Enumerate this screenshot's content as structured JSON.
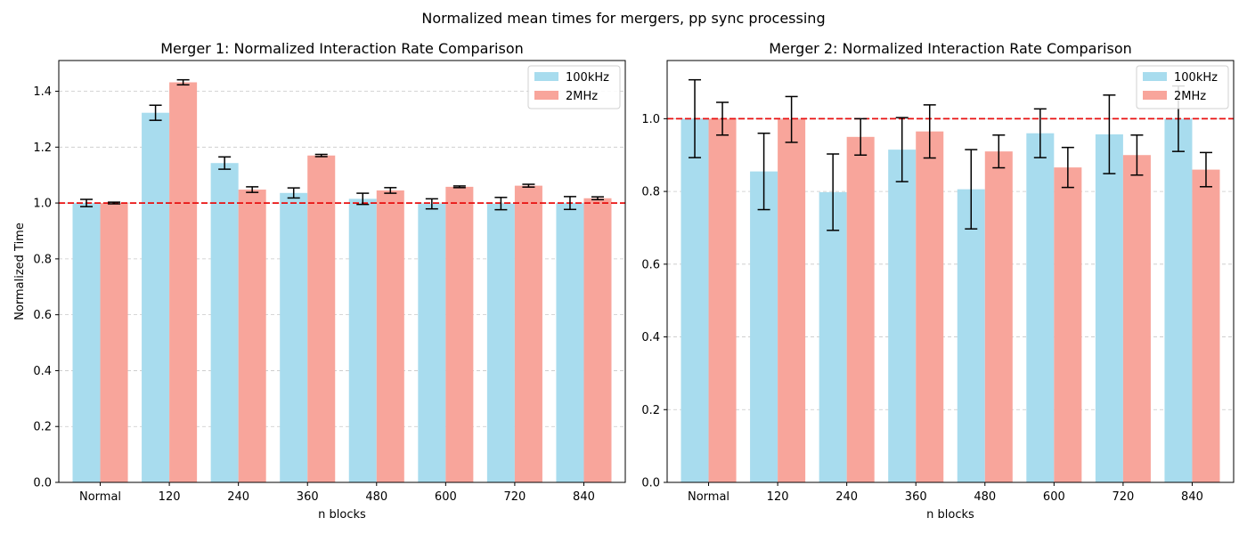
{
  "figure": {
    "suptitle": "Normalized mean times for mergers, pp sync processing"
  },
  "colors": {
    "100kHz": "#a8dcee",
    "2MHz": "#f8a59b",
    "reference": "#e81010",
    "grid": "#c8c8c8",
    "error": "#000000"
  },
  "chart_data": [
    {
      "type": "bar",
      "title": "Merger 1: Normalized Interaction Rate Comparison",
      "xlabel": "n blocks",
      "ylabel": "Normalized Time",
      "categories": [
        "Normal",
        "120",
        "240",
        "360",
        "480",
        "600",
        "720",
        "840"
      ],
      "series": [
        {
          "name": "100kHz",
          "values": [
            1.0,
            1.323,
            1.143,
            1.036,
            1.015,
            0.997,
            0.998,
            1.0
          ],
          "errors": [
            0.013,
            0.027,
            0.022,
            0.018,
            0.02,
            0.018,
            0.022,
            0.023
          ]
        },
        {
          "name": "2MHz",
          "values": [
            1.0,
            1.432,
            1.048,
            1.17,
            1.045,
            1.058,
            1.062,
            1.017
          ],
          "errors": [
            0.003,
            0.009,
            0.01,
            0.004,
            0.01,
            0.003,
            0.005,
            0.005
          ]
        }
      ],
      "ylim": [
        0,
        1.51
      ],
      "yticks": [
        0.0,
        0.2,
        0.4,
        0.6,
        0.8,
        1.0,
        1.2,
        1.4
      ],
      "reference_line": 1.0,
      "grid": "y",
      "legend": "upper right"
    },
    {
      "type": "bar",
      "title": "Merger 2: Normalized Interaction Rate Comparison",
      "xlabel": "n blocks",
      "ylabel": "",
      "categories": [
        "Normal",
        "120",
        "240",
        "360",
        "480",
        "600",
        "720",
        "840"
      ],
      "series": [
        {
          "name": "100kHz",
          "values": [
            1.0,
            0.855,
            0.798,
            0.915,
            0.806,
            0.96,
            0.957,
            1.0
          ],
          "errors": [
            0.107,
            0.105,
            0.105,
            0.088,
            0.109,
            0.067,
            0.108,
            0.09
          ]
        },
        {
          "name": "2MHz",
          "values": [
            1.0,
            0.998,
            0.95,
            0.965,
            0.91,
            0.866,
            0.9,
            0.86
          ],
          "errors": [
            0.045,
            0.063,
            0.05,
            0.073,
            0.045,
            0.055,
            0.055,
            0.047
          ]
        }
      ],
      "ylim": [
        0,
        1.16
      ],
      "yticks": [
        0.0,
        0.2,
        0.4,
        0.6,
        0.8,
        1.0
      ],
      "reference_line": 1.0,
      "grid": "y",
      "legend": "upper right"
    }
  ]
}
